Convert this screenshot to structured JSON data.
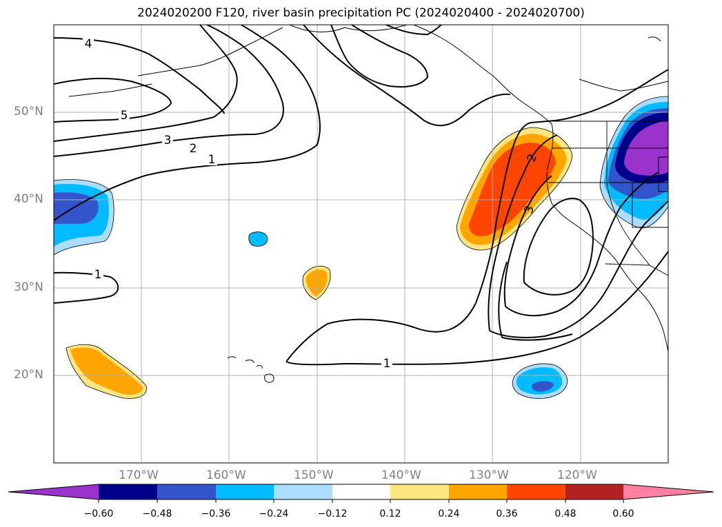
{
  "title": "2024020200 F120, river basin precipitation PC (2024020400 - 2024020700)",
  "map": {
    "lat_labels": [
      "50°N",
      "40°N",
      "30°N",
      "20°N"
    ],
    "lon_labels": [
      "170°W",
      "160°W",
      "150°W",
      "140°W",
      "130°W",
      "120°W"
    ],
    "gridlines": true,
    "contour_labels": [
      "4",
      "5",
      "3",
      "2",
      "1",
      "1",
      "1",
      "2",
      "3"
    ]
  },
  "colorbar": {
    "extend": "both",
    "ticks": [
      "−0.60",
      "−0.48",
      "−0.36",
      "−0.24",
      "−0.12",
      "0.12",
      "0.24",
      "0.36",
      "0.48",
      "0.60"
    ],
    "colors": [
      "#9933cc",
      "#00008b",
      "#3355cc",
      "#00bbff",
      "#aaddff",
      "#ffffff",
      "#ffe680",
      "#ffa500",
      "#ff4500",
      "#b22222",
      "#ff80a0"
    ]
  }
}
